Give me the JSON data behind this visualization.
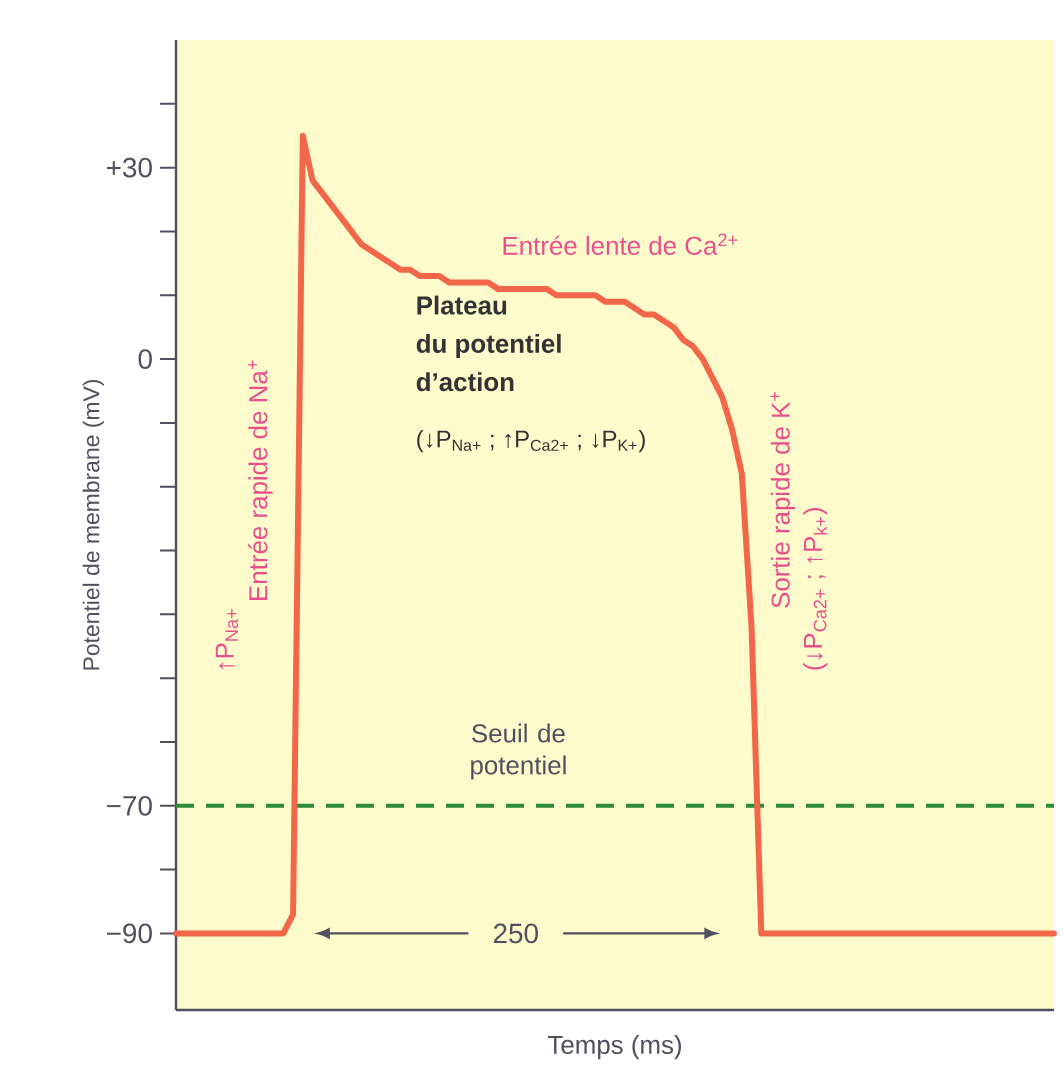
{
  "chart_data": {
    "type": "line",
    "xlabel": "Temps (ms)",
    "ylabel": "Potentiel de membrane (mV)",
    "categories": [
      null,
      null,
      null,
      null,
      null,
      null,
      null,
      null,
      null,
      null,
      null,
      null,
      null,
      null,
      null,
      null,
      null,
      null,
      null,
      null,
      null,
      null,
      null,
      null,
      null,
      null,
      null,
      null,
      null,
      null,
      null,
      null,
      null,
      null,
      null,
      null,
      null,
      null,
      null,
      null,
      null,
      null,
      null,
      null,
      null,
      null,
      null,
      null,
      null,
      null,
      null,
      null,
      null,
      null,
      null,
      null,
      null,
      null,
      null,
      null,
      null,
      null,
      null,
      null,
      null,
      null,
      null,
      null,
      null,
      null,
      null,
      null,
      null,
      null,
      null,
      null,
      null,
      null,
      null,
      null,
      null,
      null,
      null,
      null,
      null,
      null,
      null,
      null,
      null,
      null,
      null
    ],
    "series": [
      {
        "color": "#f2664a",
        "values": [
          -90,
          -90,
          -90,
          -90,
          -90,
          -90,
          -90,
          -90,
          -90,
          -90,
          -90,
          -90,
          -87,
          35,
          28,
          26,
          24,
          22,
          20,
          18,
          17,
          16,
          15,
          14,
          14,
          13,
          13,
          13,
          12,
          12,
          12,
          12,
          12,
          11,
          11,
          11,
          11,
          11,
          11,
          10,
          10,
          10,
          10,
          10,
          9,
          9,
          9,
          8,
          7,
          7,
          6,
          5,
          3,
          2,
          0,
          -3,
          -6,
          -11,
          -18,
          -42,
          -90,
          -90,
          -90,
          -90,
          -90,
          -90,
          -90,
          -90,
          -90,
          -90,
          -90,
          -90,
          -90,
          -90,
          -90,
          -90,
          -90,
          -90,
          -90,
          -90,
          -90,
          -90,
          -90,
          -90,
          -90,
          -90,
          -90,
          -90,
          -90,
          -90,
          -90
        ]
      }
    ],
    "ylim": [
      -102,
      50
    ],
    "yticks": [
      {
        "value": 40,
        "label": null
      },
      {
        "value": 30,
        "label": "+30"
      },
      {
        "value": 20,
        "label": null
      },
      {
        "value": 10,
        "label": null
      },
      0,
      {
        "value": -10,
        "label": null
      },
      {
        "value": -20,
        "label": null
      },
      {
        "value": -30,
        "label": null
      },
      {
        "value": -40,
        "label": null
      },
      {
        "value": -50,
        "label": null
      },
      {
        "value": -60,
        "label": null
      },
      {
        "value": -70,
        "label": "−70"
      },
      {
        "value": -80,
        "label": null
      },
      {
        "value": -90,
        "label": "−90"
      }
    ],
    "tick_labels": "y",
    "marker": "none",
    "line_style": "solid",
    "ref_lines": [
      {
        "axis": "y",
        "value": -70,
        "label": "Seuil de potentiel",
        "color": "#2e8b3a",
        "line_style": "dashed"
      }
    ],
    "annotations": [
      "Entrée lente de Ca$^{2+}$",
      "Plateau",
      "du potentiel",
      "d’action",
      "(↓P$_{Na+}$ ; ↑P$_{Ca2+}$ ; ↓P$_{K+}$)",
      "↑P$_{Na+}$",
      "Entrée rapide de Na$^{+}$",
      "Sortie rapide de K$^{+}$",
      "(↓P$_{Ca2+}$ ; ↑P$_{k+}$)",
      "250"
    ]
  }
}
